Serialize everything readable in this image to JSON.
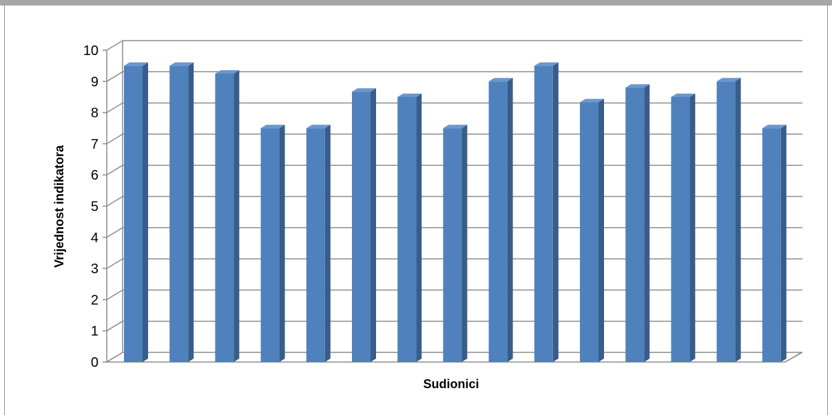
{
  "chart_data": {
    "type": "bar",
    "title": "",
    "xlabel": "Sudionici",
    "ylabel": "Vrijednost indikatora",
    "ylim": [
      0,
      10
    ],
    "yticks": [
      0,
      1,
      2,
      3,
      4,
      5,
      6,
      7,
      8,
      9,
      10
    ],
    "grid": true,
    "legend": "none",
    "categories": [
      "",
      "",
      "",
      "",
      "",
      "",
      "",
      "",
      "",
      "",
      "",
      "",
      "",
      "",
      ""
    ],
    "values": [
      9.5,
      9.5,
      9.25,
      7.5,
      7.5,
      8.67,
      8.5,
      7.5,
      9.0,
      9.5,
      8.33,
      8.8,
      8.5,
      9.0,
      7.5
    ],
    "colors": {
      "bar_front": "#4f81bd",
      "bar_side": "#385d8a",
      "bar_top": "#6b97cc",
      "grid": "#8c8c8c"
    }
  }
}
